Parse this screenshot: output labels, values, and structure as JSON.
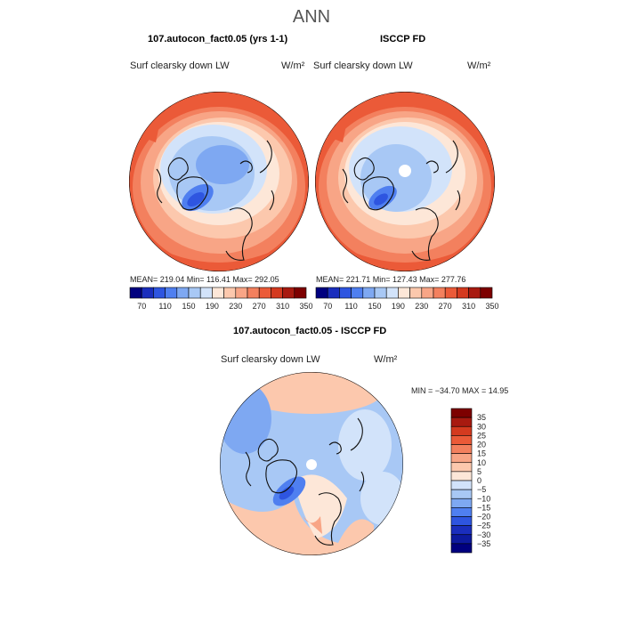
{
  "figure": {
    "title": "ANN"
  },
  "panels": [
    {
      "title": "107.autocon_fact0.05 (yrs 1-1)",
      "variable": "Surf clearsky down LW",
      "units": "W/m²",
      "stats": "MEAN= 219.04   Min= 116.41   Max= 292.05"
    },
    {
      "title": "ISCCP FD",
      "variable": "Surf clearsky down LW",
      "units": "W/m²",
      "stats": "MEAN= 221.71   Min= 127.43   Max= 277.76"
    },
    {
      "title": "107.autocon_fact0.05 - ISCCP FD",
      "variable": "Surf clearsky down LW",
      "units": "W/m²",
      "stats": "MIN = −34.70 MAX =  14.95"
    }
  ],
  "chart_data": [
    {
      "type": "heatmap",
      "projection": "north polar stereographic",
      "title": "107.autocon_fact0.05 (yrs 1-1)",
      "subtitle": "Surf clearsky down LW",
      "units": "W/m2",
      "mean": 219.04,
      "min": 116.41,
      "max": 292.05,
      "colorbar": {
        "ticks": [
          70,
          110,
          150,
          190,
          230,
          270,
          310,
          350
        ],
        "colors": [
          "#00007f",
          "#1a2ebd",
          "#2e55e0",
          "#4f7ff0",
          "#7ea8f2",
          "#a8c8f5",
          "#d2e3fa",
          "#fde7d8",
          "#fcc8ad",
          "#f8a586",
          "#f3805e",
          "#eb5a38",
          "#d43a1f",
          "#a81a10",
          "#7d0000"
        ]
      }
    },
    {
      "type": "heatmap",
      "projection": "north polar stereographic",
      "title": "ISCCP FD",
      "subtitle": "Surf clearsky down LW",
      "units": "W/m2",
      "mean": 221.71,
      "min": 127.43,
      "max": 277.76,
      "colorbar": {
        "ticks": [
          70,
          110,
          150,
          190,
          230,
          270,
          310,
          350
        ],
        "colors": [
          "#00007f",
          "#1a2ebd",
          "#2e55e0",
          "#4f7ff0",
          "#7ea8f2",
          "#a8c8f5",
          "#d2e3fa",
          "#fde7d8",
          "#fcc8ad",
          "#f8a586",
          "#f3805e",
          "#eb5a38",
          "#d43a1f",
          "#a81a10",
          "#7d0000"
        ]
      }
    },
    {
      "type": "heatmap",
      "projection": "north polar stereographic",
      "title": "107.autocon_fact0.05 - ISCCP FD",
      "subtitle": "Surf clearsky down LW",
      "units": "W/m2",
      "min": -34.7,
      "max": 14.95,
      "colorbar": {
        "orientation": "vertical",
        "ticks": [
          35,
          30,
          25,
          20,
          15,
          10,
          5,
          0,
          -5,
          -10,
          -15,
          -20,
          -25,
          -30,
          -35
        ],
        "tick_labels": [
          "35",
          "30",
          "25",
          "20",
          "15",
          "10",
          "5",
          "0",
          "−5",
          "−10",
          "−15",
          "−20",
          "−25",
          "−30",
          "−35"
        ],
        "colors": [
          "#7d0000",
          "#a81a10",
          "#d43a1f",
          "#eb5a38",
          "#f3805e",
          "#f8a586",
          "#fcc8ad",
          "#fde7d8",
          "#d2e3fa",
          "#a8c8f5",
          "#7ea8f2",
          "#4f7ff0",
          "#2e55e0",
          "#1a2ebd",
          "#0d1a9e",
          "#00007f"
        ]
      }
    }
  ]
}
